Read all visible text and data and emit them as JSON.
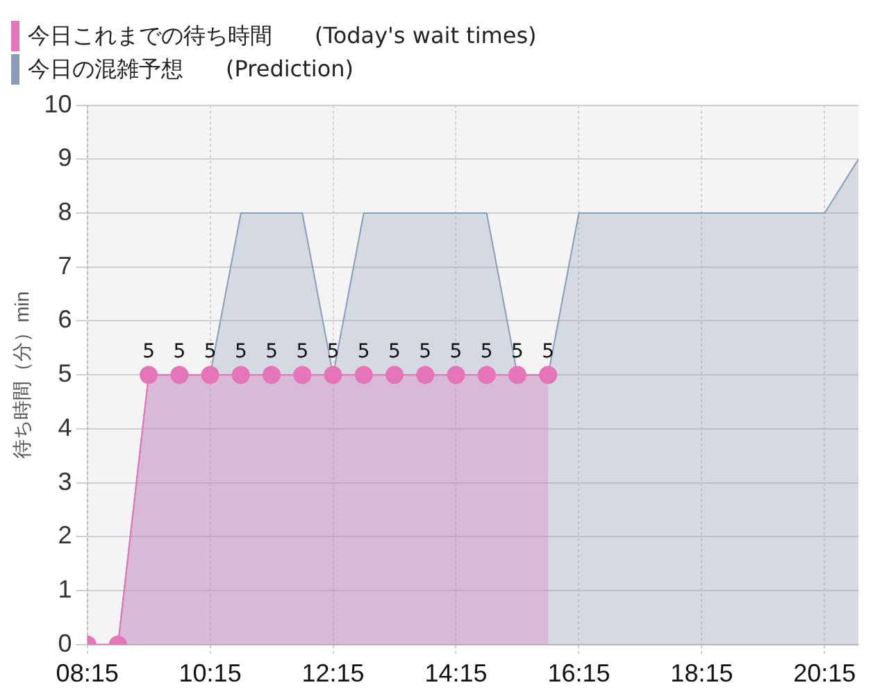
{
  "chart_data": {
    "type": "area",
    "ylabel": "待ち時間（分）min",
    "legend": "top left",
    "grid": true,
    "xlim": [
      8.25,
      20.8
    ],
    "ylim": [
      0,
      10
    ],
    "xticks": [
      {
        "value": 8.25,
        "label": "08:15"
      },
      {
        "value": 10.25,
        "label": "10:15"
      },
      {
        "value": 12.25,
        "label": "12:15"
      },
      {
        "value": 14.25,
        "label": "14:15"
      },
      {
        "value": 16.25,
        "label": "16:15"
      },
      {
        "value": 18.25,
        "label": "18:15"
      },
      {
        "value": 20.25,
        "label": "20:15"
      }
    ],
    "yticks": [
      0,
      1,
      2,
      3,
      4,
      5,
      6,
      7,
      8,
      9,
      10
    ],
    "series": [
      {
        "name": "今日これまでの待ち時間 (Today's wait times)",
        "color": "#e574b9",
        "marker": "circle",
        "x": [
          8.25,
          8.75,
          9.25,
          9.75,
          10.25,
          10.75,
          11.25,
          11.75,
          12.25,
          12.75,
          13.25,
          13.75,
          14.25,
          14.75,
          15.25,
          15.75
        ],
        "values": [
          0,
          0,
          5,
          5,
          5,
          5,
          5,
          5,
          5,
          5,
          5,
          5,
          5,
          5,
          5,
          5
        ],
        "value_labels": [
          null,
          null,
          "5",
          "5",
          "5",
          "5",
          "5",
          "5",
          "5",
          "5",
          "5",
          "5",
          "5",
          "5",
          "5",
          "5"
        ]
      },
      {
        "name": "今日の混雑予想 (Prediction)",
        "color": "#8a9cb8",
        "marker": "none",
        "x": [
          8.25,
          8.75,
          9.25,
          9.75,
          10.25,
          10.75,
          11.25,
          11.75,
          12.25,
          12.75,
          13.25,
          13.75,
          14.25,
          14.75,
          15.25,
          15.75,
          16.25,
          16.75,
          17.25,
          17.75,
          18.25,
          18.75,
          19.25,
          19.75,
          20.25,
          20.8
        ],
        "values": [
          0,
          0,
          5,
          5,
          5,
          8,
          8,
          8,
          5,
          8,
          8,
          8,
          8,
          8,
          5,
          5,
          8,
          8,
          8,
          8,
          8,
          8,
          8,
          8,
          8,
          9
        ]
      }
    ]
  }
}
